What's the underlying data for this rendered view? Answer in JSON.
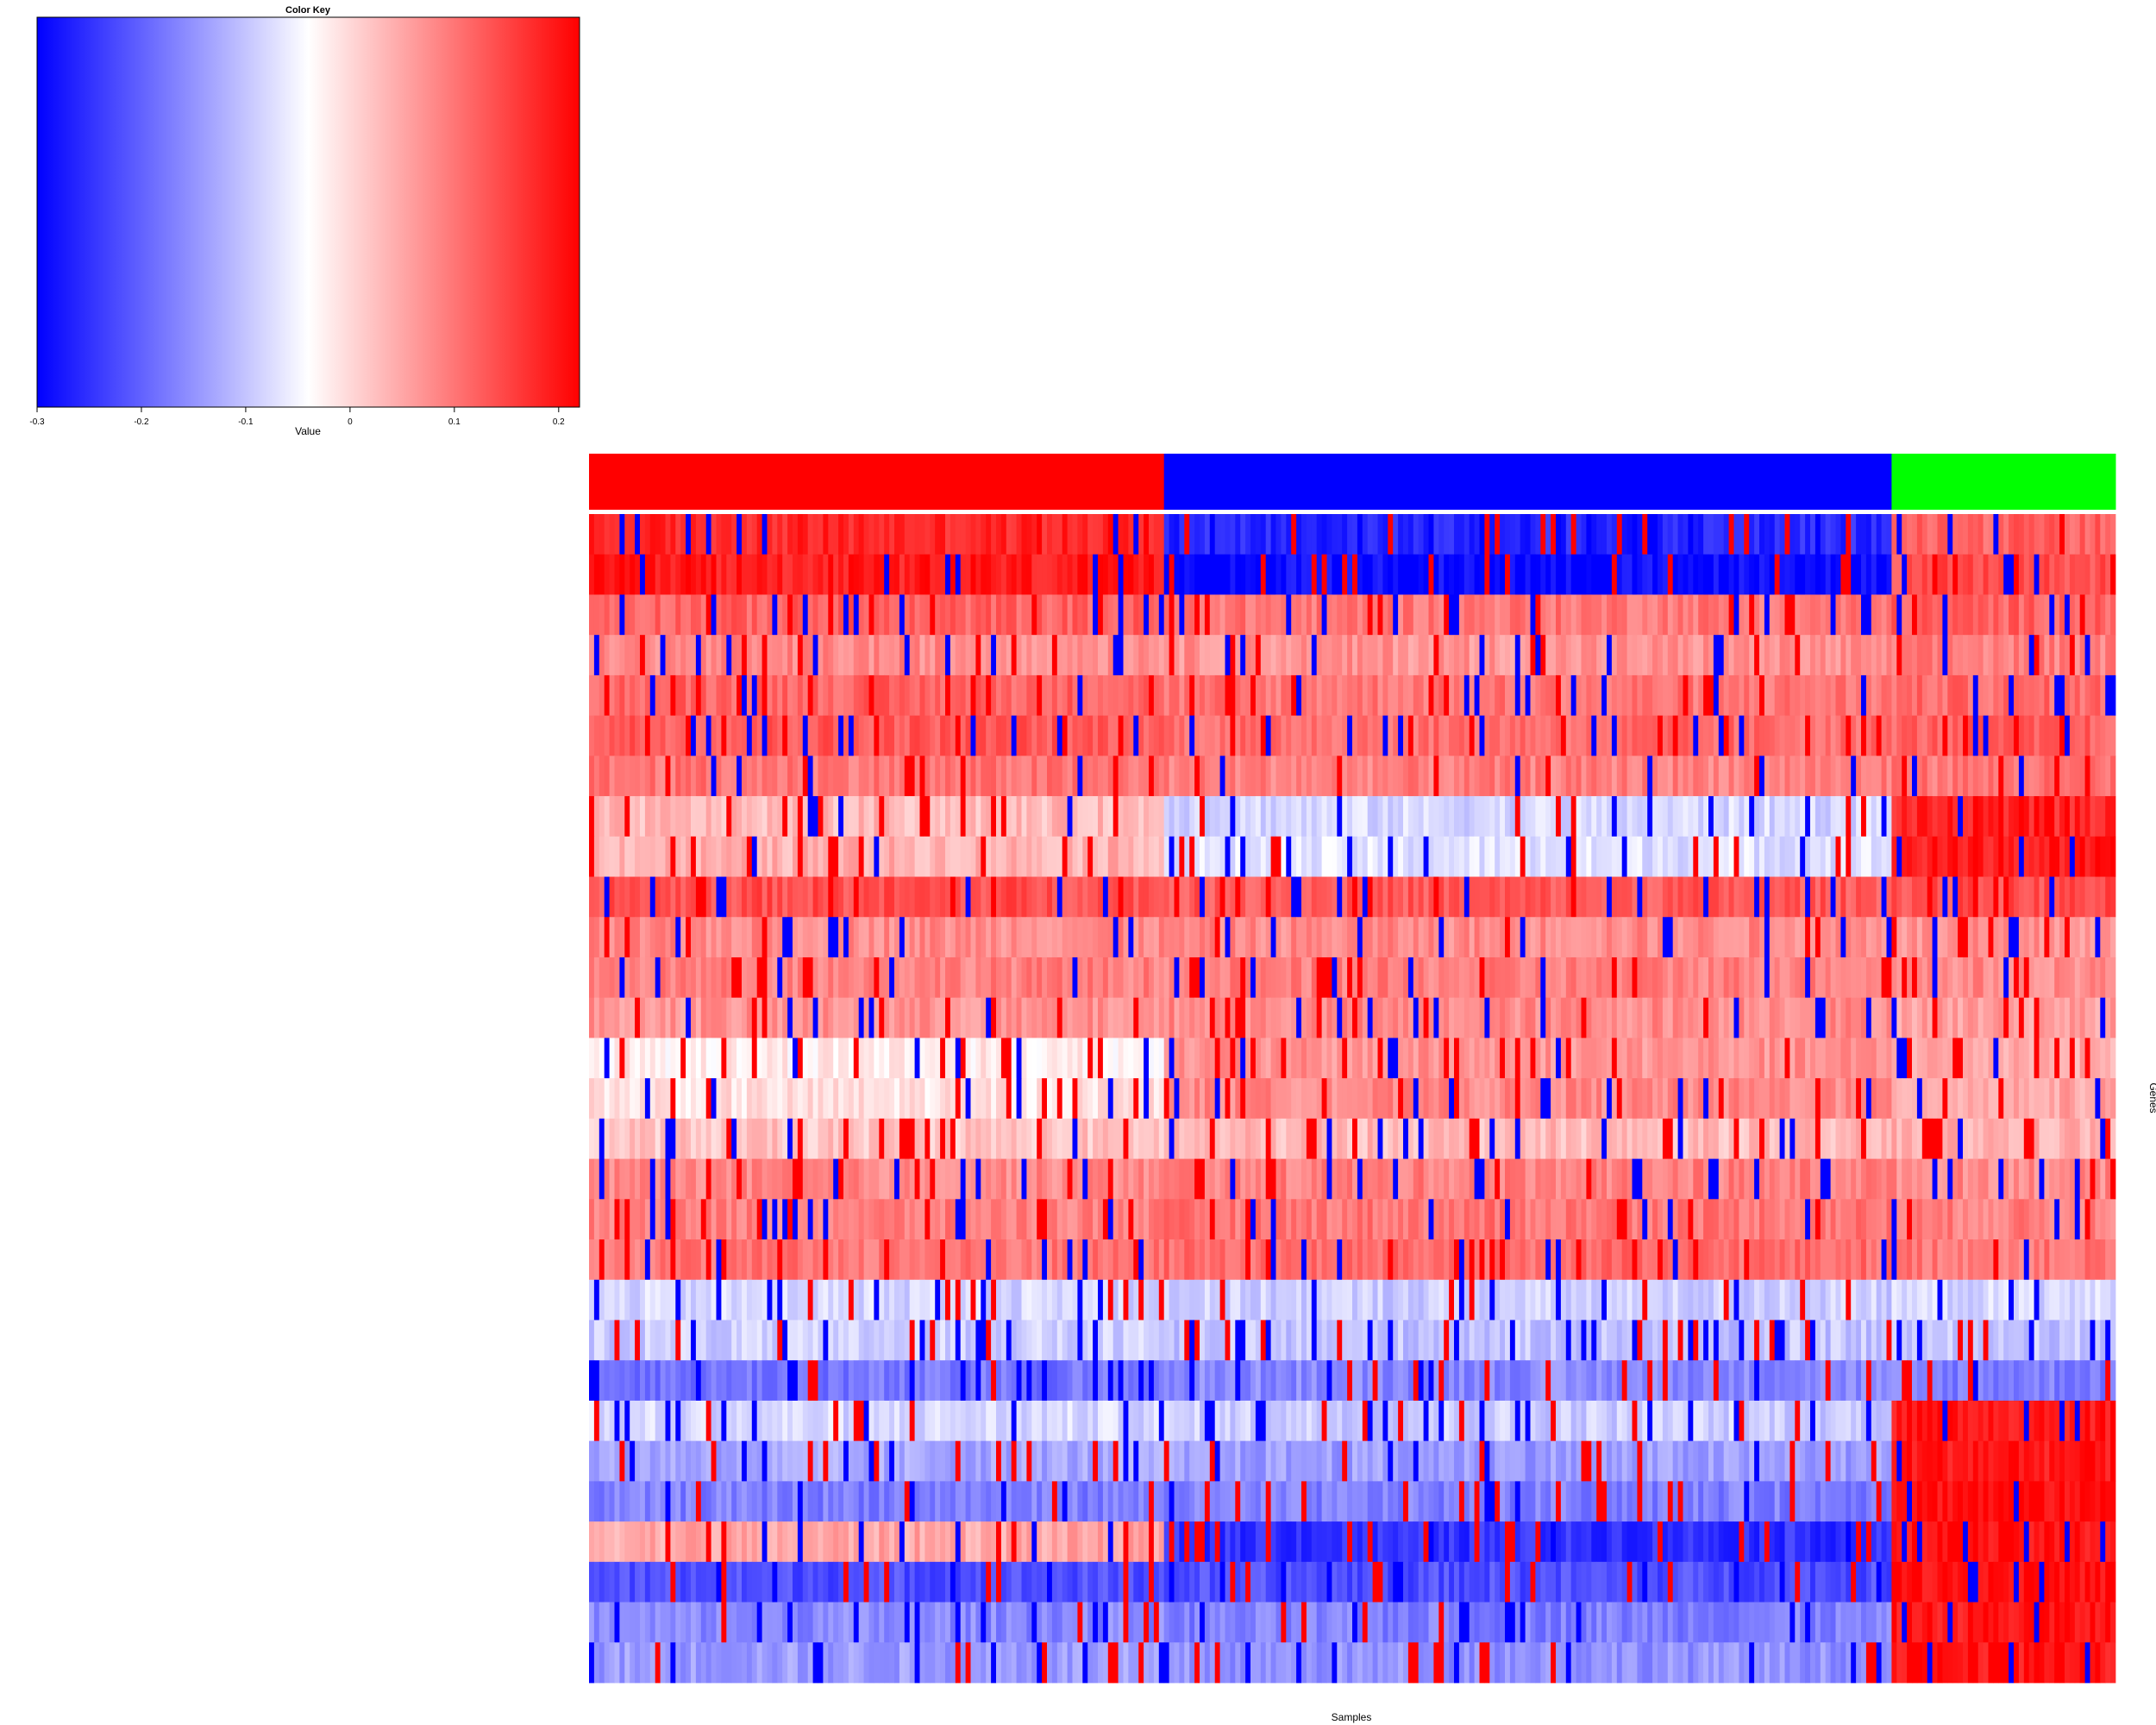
{
  "chart_data": {
    "type": "heatmap",
    "xlabel": "Samples",
    "ylabel": "Genes",
    "color_key": {
      "title": "Color Key",
      "label": "Value",
      "range": [
        -0.3,
        0.22
      ],
      "ticks": [
        -0.3,
        -0.2,
        -0.1,
        0,
        0.1,
        0.2
      ],
      "tick_labels": [
        "-0.3",
        "-0.2",
        "-0.1",
        "0",
        "0.1",
        "0.2"
      ],
      "colors": [
        "#0000ff",
        "#ffffff",
        "#ff0000"
      ]
    },
    "n_samples": 300,
    "n_genes": 29,
    "sample_groups": [
      {
        "color": "#ff0000",
        "fraction": 0.375
      },
      {
        "color": "#0000ff",
        "fraction": 0.477
      },
      {
        "color": "#00ff00",
        "fraction": 0.148
      }
    ],
    "gene_row_means": [
      [
        0.18,
        -0.26,
        0.12
      ],
      [
        0.19,
        -0.29,
        0.14
      ],
      [
        0.12,
        0.1,
        0.12
      ],
      [
        0.08,
        0.07,
        0.09
      ],
      [
        0.12,
        0.1,
        0.11
      ],
      [
        0.13,
        0.11,
        0.12
      ],
      [
        0.1,
        0.09,
        0.1
      ],
      [
        0.03,
        -0.08,
        0.18
      ],
      [
        0.04,
        -0.07,
        0.19
      ],
      [
        0.14,
        0.13,
        0.14
      ],
      [
        0.08,
        0.08,
        0.07
      ],
      [
        0.09,
        0.09,
        0.08
      ],
      [
        0.07,
        0.08,
        0.06
      ],
      [
        -0.02,
        0.07,
        0.05
      ],
      [
        -0.01,
        0.08,
        0.05
      ],
      [
        0.02,
        0.03,
        0.04
      ],
      [
        0.08,
        0.09,
        0.08
      ],
      [
        0.09,
        0.1,
        0.09
      ],
      [
        0.1,
        0.11,
        0.1
      ],
      [
        -0.08,
        -0.09,
        -0.08
      ],
      [
        -0.09,
        -0.1,
        -0.1
      ],
      [
        -0.18,
        -0.16,
        -0.17
      ],
      [
        -0.08,
        -0.09,
        0.2
      ],
      [
        -0.13,
        -0.14,
        0.2
      ],
      [
        -0.17,
        -0.17,
        0.21
      ],
      [
        0.05,
        -0.25,
        0.2
      ],
      [
        -0.22,
        -0.22,
        0.21
      ],
      [
        -0.16,
        -0.17,
        0.2
      ],
      [
        -0.14,
        -0.15,
        0.2
      ]
    ]
  }
}
